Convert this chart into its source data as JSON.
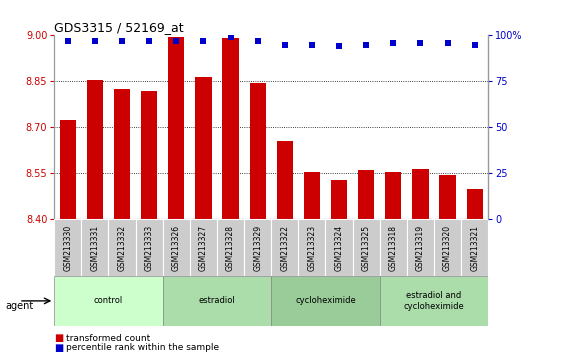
{
  "title": "GDS3315 / 52169_at",
  "samples": [
    "GSM213330",
    "GSM213331",
    "GSM213332",
    "GSM213333",
    "GSM213326",
    "GSM213327",
    "GSM213328",
    "GSM213329",
    "GSM213322",
    "GSM213323",
    "GSM213324",
    "GSM213325",
    "GSM213318",
    "GSM213319",
    "GSM213320",
    "GSM213321"
  ],
  "bar_values": [
    8.725,
    8.855,
    8.825,
    8.82,
    8.995,
    8.865,
    8.99,
    8.845,
    8.655,
    8.555,
    8.53,
    8.56,
    8.555,
    8.565,
    8.545,
    8.5
  ],
  "percentile_values": [
    97,
    97,
    97,
    97,
    97,
    97,
    99,
    97,
    95,
    95,
    94,
    95,
    96,
    96,
    96,
    95
  ],
  "bar_color": "#cc0000",
  "dot_color": "#0000cc",
  "ylim_left": [
    8.4,
    9.0
  ],
  "ylim_right": [
    0,
    100
  ],
  "yticks_left": [
    8.4,
    8.55,
    8.7,
    8.85,
    9.0
  ],
  "yticks_right": [
    0,
    25,
    50,
    75,
    100
  ],
  "grid_lines": [
    8.55,
    8.7,
    8.85
  ],
  "groups": [
    {
      "label": "control",
      "start": 0,
      "end": 3
    },
    {
      "label": "estradiol",
      "start": 4,
      "end": 7
    },
    {
      "label": "cycloheximide",
      "start": 8,
      "end": 11
    },
    {
      "label": "estradiol and\ncycloheximide",
      "start": 12,
      "end": 15
    }
  ],
  "group_colors": [
    "#ccffcc",
    "#aaddaa",
    "#99cc99",
    "#aaddaa"
  ],
  "agent_label": "agent",
  "legend_red_label": "transformed count",
  "legend_blue_label": "percentile rank within the sample",
  "background_color": "#ffffff",
  "ylabel_left_color": "#cc0000",
  "ylabel_right_color": "#0000cc",
  "sample_box_color": "#cccccc",
  "bar_width": 0.6
}
